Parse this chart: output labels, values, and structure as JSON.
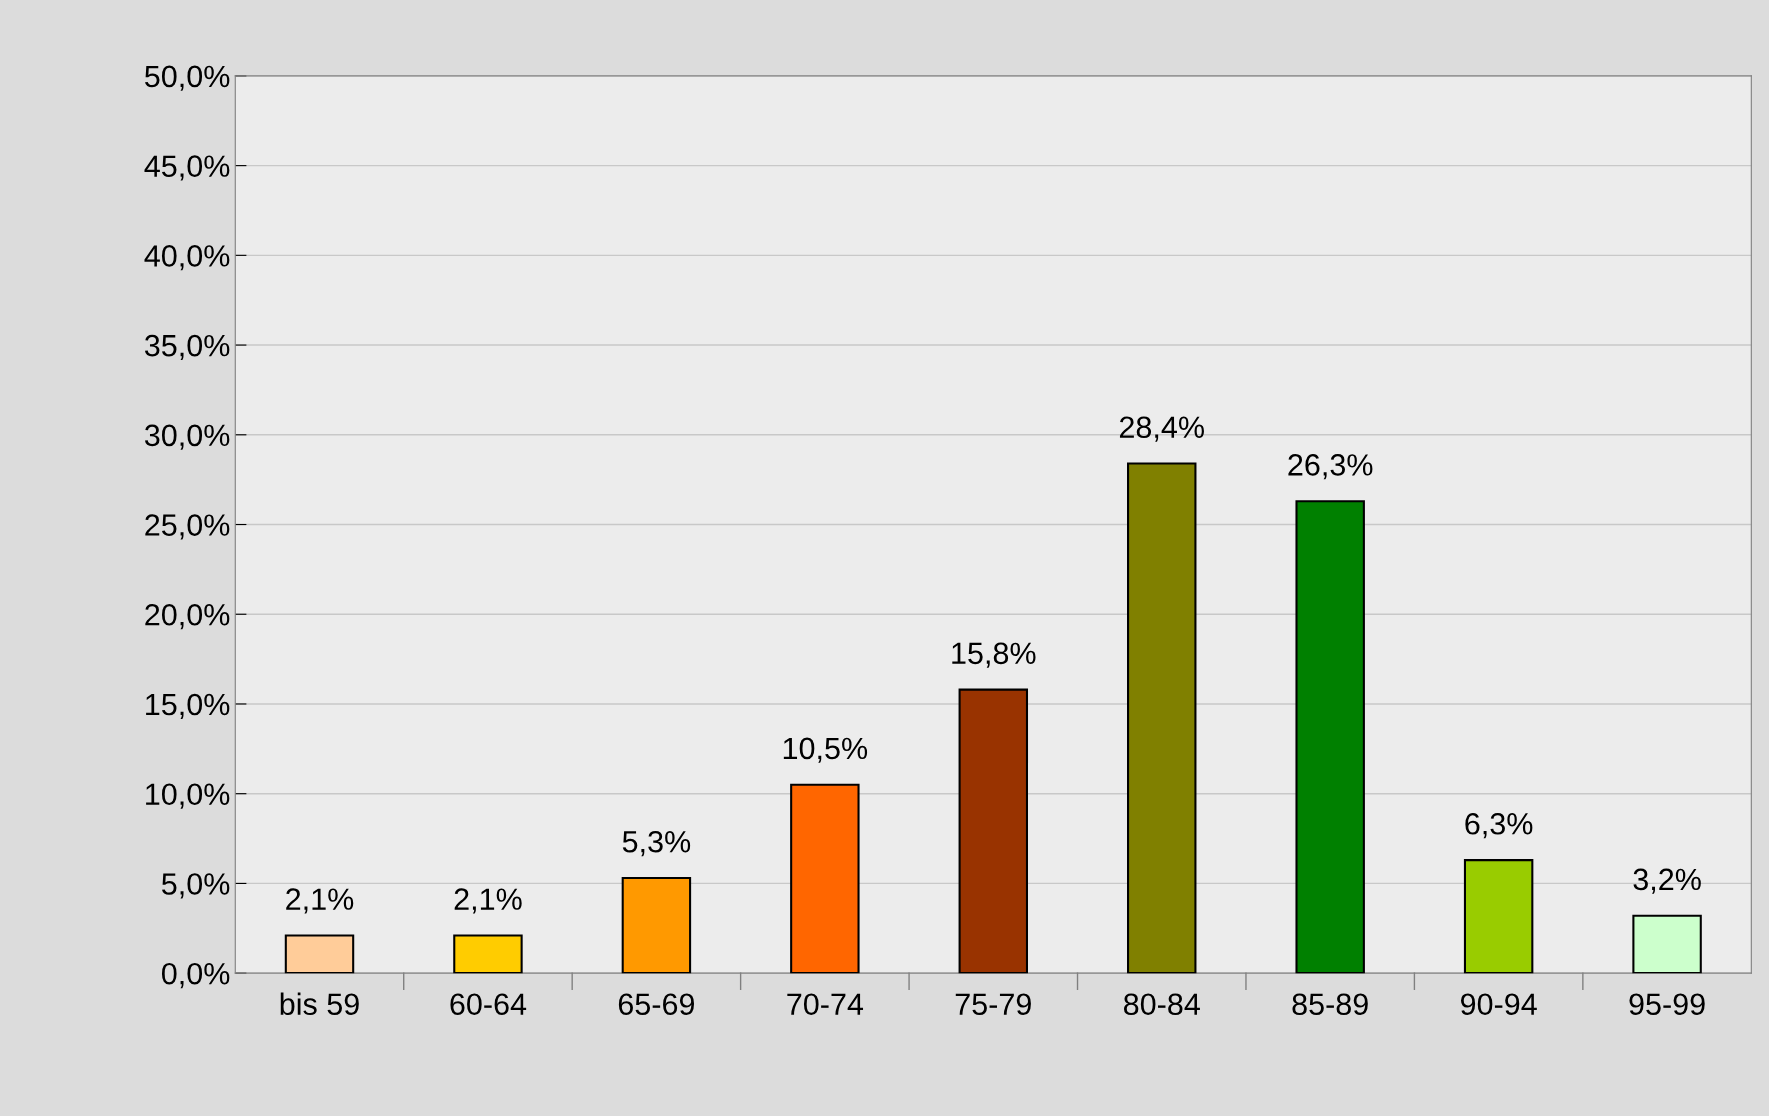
{
  "chart_data": {
    "type": "bar",
    "categories": [
      "bis 59",
      "60-64",
      "65-69",
      "70-74",
      "75-79",
      "80-84",
      "85-89",
      "90-94",
      "95-99"
    ],
    "values": [
      2.1,
      2.1,
      5.3,
      10.5,
      15.8,
      28.4,
      26.3,
      6.3,
      3.2
    ],
    "colors": [
      "#ffcc99",
      "#ffcc00",
      "#ff9900",
      "#ff6600",
      "#993300",
      "#808000",
      "#008000",
      "#99cc00",
      "#ccffcc"
    ],
    "value_labels": [
      "2,1%",
      "2,1%",
      "5,3%",
      "10,5%",
      "15,8%",
      "28,4%",
      "26,3%",
      "6,3%",
      "3,2%"
    ],
    "ylim": [
      0,
      50
    ],
    "yticks": [
      {
        "value": 0,
        "label": "0,0%"
      },
      {
        "value": 5,
        "label": "5,0%"
      },
      {
        "value": 10,
        "label": "10,0%"
      },
      {
        "value": 15,
        "label": "15,0%"
      },
      {
        "value": 20,
        "label": "20,0%"
      },
      {
        "value": 25,
        "label": "25,0%"
      },
      {
        "value": 30,
        "label": "30,0%"
      },
      {
        "value": 35,
        "label": "35,0%"
      },
      {
        "value": 40,
        "label": "40,0%"
      },
      {
        "value": 45,
        "label": "45,0%"
      },
      {
        "value": 50,
        "label": "50,0%"
      }
    ],
    "grid": "y",
    "legend": false
  }
}
